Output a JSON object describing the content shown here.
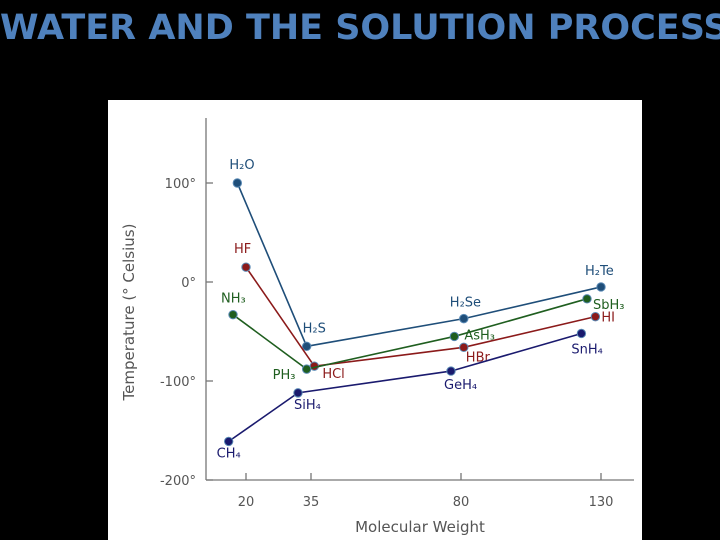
{
  "slide": {
    "title": "WATER AND THE SOLUTION PROCESS"
  },
  "chart_data": {
    "type": "line",
    "title": "",
    "xlabel": "Molecular Weight",
    "ylabel": "Temperature (° Celsius)",
    "x_ticks": [
      "20",
      "35",
      "80",
      "130"
    ],
    "y_ticks": [
      "100°",
      "0°",
      "-100°",
      "-200°"
    ],
    "ylim": [
      -200,
      170
    ],
    "grid": false,
    "legend": "none",
    "series": [
      {
        "color": "#1f4e79",
        "points": [
          {
            "label": "H₂O",
            "x": 18,
            "y": 100
          },
          {
            "label": "H₂S",
            "x": 34,
            "y": -65
          },
          {
            "label": "H₂Se",
            "x": 81,
            "y": -37
          },
          {
            "label": "H₂Te",
            "x": 130,
            "y": -5
          }
        ]
      },
      {
        "color": "#8b1a1a",
        "points": [
          {
            "label": "HF",
            "x": 20,
            "y": 15
          },
          {
            "label": "HCl",
            "x": 36,
            "y": -85
          },
          {
            "label": "HBr",
            "x": 81,
            "y": -66
          },
          {
            "label": "HI",
            "x": 128,
            "y": -35
          }
        ]
      },
      {
        "color": "#1f5e1f",
        "points": [
          {
            "label": "NH₃",
            "x": 17,
            "y": -33
          },
          {
            "label": "PH₃",
            "x": 34,
            "y": -88
          },
          {
            "label": "AsH₃",
            "x": 78,
            "y": -55
          },
          {
            "label": "SbH₃",
            "x": 125,
            "y": -17
          }
        ]
      },
      {
        "color": "#1a1a6e",
        "points": [
          {
            "label": "CH₄",
            "x": 16,
            "y": -161
          },
          {
            "label": "SiH₄",
            "x": 32,
            "y": -112
          },
          {
            "label": "GeH₄",
            "x": 77,
            "y": -90
          },
          {
            "label": "SnH₄",
            "x": 123,
            "y": -52
          }
        ]
      }
    ]
  }
}
